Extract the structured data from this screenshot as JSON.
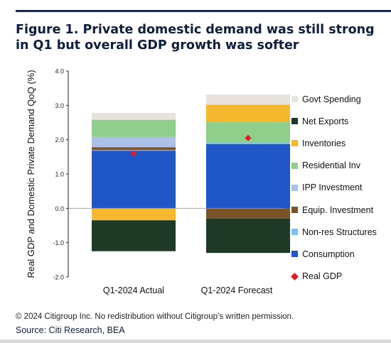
{
  "title": "Figure 1. Private domestic demand was still strong in Q1 but overall GDP growth was softer",
  "copyright": "© 2024 Citigroup Inc. No redistribution without Citigroup’s written permission.",
  "source": "Source: Citi Research, BEA",
  "chart_data": {
    "type": "bar",
    "stacked": true,
    "categories": [
      "Q1-2024 Actual",
      "Q1-2024 Forecast"
    ],
    "ylabel": "Real GDP and Domestic Private Demand QoQ (%)",
    "ylim": [
      -2.0,
      4.0
    ],
    "yticks": [
      "4.0",
      "3.0",
      "2.0",
      "1.0",
      "0.0",
      "-1.0",
      "-2.0"
    ],
    "grid": false,
    "legend_position": "right",
    "series": [
      {
        "name": "Govt Spending",
        "color": "#e8e3dc",
        "values": [
          0.2,
          0.3
        ]
      },
      {
        "name": "Net Exports",
        "color": "#1e3a26",
        "values": [
          -0.9,
          -1.0
        ]
      },
      {
        "name": "Inventories",
        "color": "#f5b82e",
        "values": [
          -0.35,
          0.5
        ]
      },
      {
        "name": "Residential Inv",
        "color": "#8fce8b",
        "values": [
          0.5,
          0.6
        ]
      },
      {
        "name": "IPP Investment",
        "color": "#adc0ea",
        "values": [
          0.3,
          0.0
        ]
      },
      {
        "name": "Equip. Investment",
        "color": "#7a5328",
        "values": [
          0.08,
          -0.3
        ]
      },
      {
        "name": "Non-res Structures",
        "color": "#7fc3ec",
        "values": [
          0.02,
          0.05
        ]
      },
      {
        "name": "Consumption",
        "color": "#1f56c8",
        "values": [
          1.68,
          1.87
        ]
      }
    ],
    "stack_order": [
      "Consumption",
      "Non-res Structures",
      "Equip. Investment",
      "IPP Investment",
      "Residential Inv",
      "Inventories",
      "Net Exports",
      "Govt Spending"
    ],
    "real_gdp": {
      "name": "Real GDP",
      "color": "#e21b23",
      "values": [
        1.6,
        2.05
      ]
    }
  }
}
